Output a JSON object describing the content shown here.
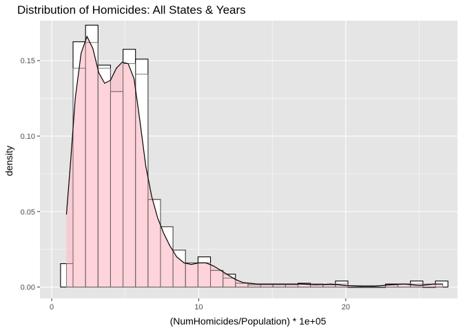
{
  "chart_data": {
    "type": "bar",
    "title": "Distribution of Homicides: All States & Years",
    "xlabel": "(NumHomicides/Population) * 1e+05",
    "ylabel": "density",
    "xlim": [
      -0.8,
      27.6
    ],
    "ylim": [
      -0.0075,
      0.1765
    ],
    "x_ticks": [
      0,
      10,
      20
    ],
    "x_tick_labels": [
      "0",
      "10",
      "20"
    ],
    "y_ticks": [
      0.0,
      0.05,
      0.1,
      0.15
    ],
    "y_tick_labels": [
      "0.00",
      "0.05",
      "0.10",
      "0.15"
    ],
    "grid": true,
    "legend": "none",
    "histogram": {
      "bin_width": 0.85,
      "bin_starts": [
        0.6,
        1.45,
        2.3,
        3.15,
        4.0,
        4.85,
        5.7,
        6.55,
        7.4,
        8.25,
        9.1,
        9.95,
        10.8,
        11.65,
        12.5,
        13.35,
        14.2,
        15.05,
        15.9,
        16.75,
        17.6,
        18.45,
        19.3,
        20.15,
        21.0,
        21.85,
        22.7,
        23.55,
        24.4,
        25.25,
        26.1
      ],
      "outline_values": [
        0.0155,
        0.1625,
        0.1735,
        0.147,
        0.1295,
        0.1575,
        0.151,
        0.058,
        0.04,
        0.0245,
        0.016,
        0.02,
        0.011,
        0.0085,
        0.0025,
        0.002,
        0.002,
        0.002,
        0.002,
        0.0025,
        0.002,
        0.0015,
        0.004,
        0.0,
        0.0,
        0.0,
        0.002,
        0.002,
        0.004,
        0.0,
        0.004
      ],
      "filled_values": [
        0.0155,
        0.145,
        0.162,
        0.145,
        0.1295,
        0.148,
        0.141,
        0.058,
        0.04,
        0.0245,
        0.016,
        0.016,
        0.011,
        0.006,
        0.0025,
        0.0015,
        0.0015,
        0.0015,
        0.0015,
        0.002,
        0.002,
        0.0015,
        0.002,
        0.001,
        0.001,
        0.001,
        0.0015,
        0.002,
        0.002,
        0.002,
        0.002
      ],
      "fill_start_x": 1.0,
      "fill_end_x": 26.6
    },
    "density": {
      "x": [
        1.0,
        1.3,
        1.6,
        2.0,
        2.4,
        2.8,
        3.2,
        3.6,
        4.0,
        4.4,
        4.8,
        5.2,
        5.6,
        6.0,
        6.4,
        6.8,
        7.2,
        7.6,
        8.0,
        8.5,
        9.0,
        9.5,
        10.0,
        10.5,
        11.0,
        11.5,
        12.0,
        12.5,
        13.0,
        14.0,
        15.0,
        16.0,
        17.0,
        18.0,
        19.0,
        20.0,
        21.0,
        22.0,
        23.0,
        24.0,
        25.0,
        26.0,
        26.6
      ],
      "y": [
        0.048,
        0.085,
        0.125,
        0.155,
        0.166,
        0.158,
        0.142,
        0.135,
        0.137,
        0.145,
        0.149,
        0.148,
        0.138,
        0.11,
        0.08,
        0.06,
        0.046,
        0.036,
        0.028,
        0.02,
        0.016,
        0.015,
        0.016,
        0.016,
        0.014,
        0.011,
        0.008,
        0.005,
        0.003,
        0.002,
        0.002,
        0.002,
        0.002,
        0.0015,
        0.002,
        0.001,
        0.0005,
        0.0005,
        0.0015,
        0.002,
        0.001,
        0.002,
        0.002
      ]
    },
    "colors": {
      "panel_background": "#e5e5e5",
      "grid": "#ffffff",
      "bar_outline": "#000000",
      "bar_fill": "#ffffff",
      "density_fill": "#ffc0cb",
      "density_fill_opacity": 0.7,
      "inner_bar_outline": "#666666",
      "density_line": "#000000"
    }
  }
}
